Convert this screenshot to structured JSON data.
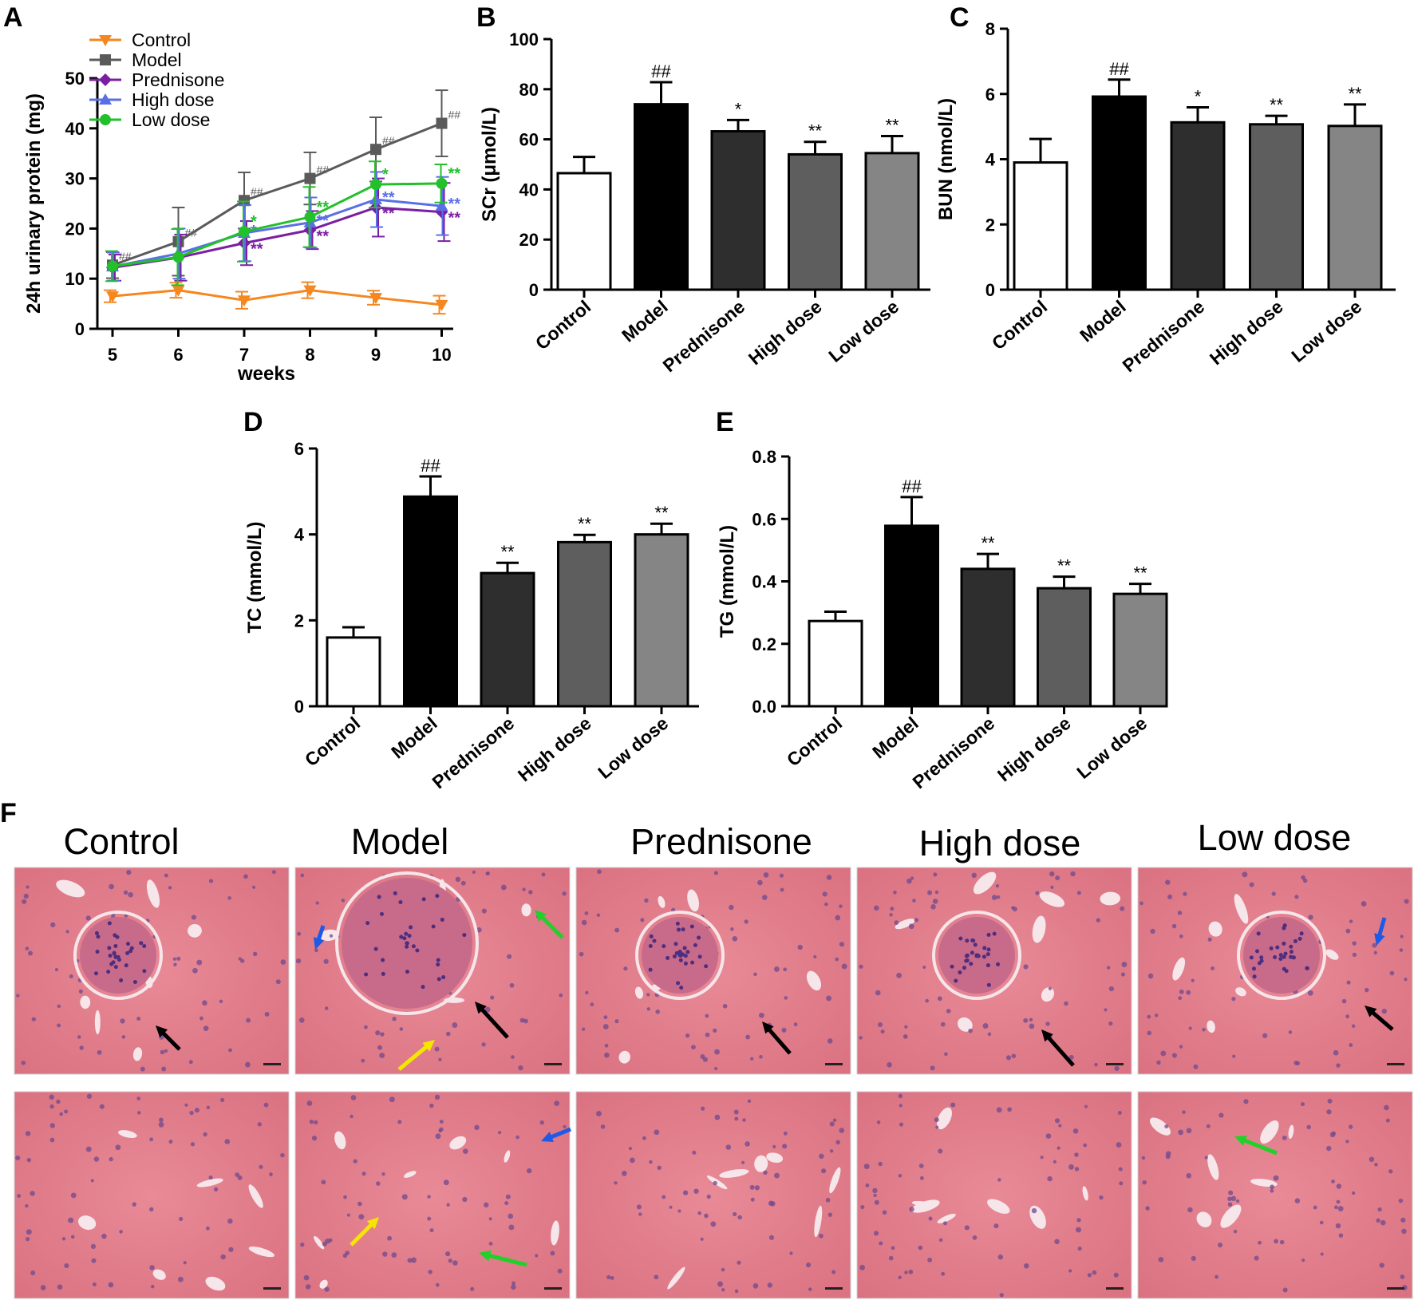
{
  "colors": {
    "control": "#F5871F",
    "model": "#5A5A5A",
    "prednisone": "#7B1FA2",
    "high_dose": "#5A6FE6",
    "low_dose": "#22C02A",
    "bar_fills": [
      "#FFFFFF",
      "#000000",
      "#2E2E2E",
      "#5E5E5E",
      "#858585"
    ]
  },
  "chart_data": [
    {
      "panel": "A",
      "type": "line",
      "xlabel": "weeks",
      "ylabel": "24h urinary protein (mg)",
      "x": [
        5,
        6,
        7,
        8,
        9,
        10
      ],
      "ylim": [
        0,
        50
      ],
      "yticks": [
        0,
        10,
        20,
        30,
        40,
        50
      ],
      "legend": "top-left",
      "grid": false,
      "series": [
        {
          "name": "Control",
          "key": "control",
          "marker": "triangle-down",
          "values": [
            6.5,
            7.7,
            5.7,
            7.7,
            6.2,
            4.8
          ],
          "errors": [
            1.2,
            1.5,
            1.7,
            1.6,
            1.4,
            1.8
          ],
          "labels": [
            "",
            "",
            "",
            "",
            "",
            ""
          ]
        },
        {
          "name": "Model",
          "key": "model",
          "marker": "square",
          "values": [
            12.7,
            17.4,
            25.6,
            30.0,
            35.8,
            41.0
          ],
          "errors": [
            2.6,
            6.8,
            5.6,
            5.2,
            6.4,
            6.6
          ],
          "labels": [
            "##",
            "##",
            "##",
            "##",
            "##",
            "##"
          ]
        },
        {
          "name": "Prednisone",
          "key": "prednisone",
          "marker": "diamond",
          "values": [
            12.2,
            14.2,
            17.1,
            19.7,
            24.2,
            23.3
          ],
          "errors": [
            2.6,
            4.6,
            4.4,
            3.8,
            5.8,
            5.8
          ],
          "labels": [
            "",
            "",
            "**",
            "**",
            "**",
            "**"
          ]
        },
        {
          "name": "High dose",
          "key": "high_dose",
          "marker": "triangle-up",
          "values": [
            12.4,
            15.0,
            19.1,
            21.2,
            25.8,
            24.5
          ],
          "errors": [
            2.8,
            5.0,
            5.6,
            5.0,
            5.5,
            5.8
          ],
          "labels": [
            "",
            "",
            "*",
            "**",
            "**",
            "**"
          ]
        },
        {
          "name": "Low dose",
          "key": "low_dose",
          "marker": "circle",
          "values": [
            12.5,
            14.3,
            19.4,
            22.3,
            28.8,
            29.0
          ],
          "errors": [
            3.0,
            5.6,
            6.0,
            6.0,
            4.6,
            3.8
          ],
          "labels": [
            "",
            "",
            "*",
            "**",
            "*",
            "**"
          ]
        }
      ]
    },
    {
      "panel": "B",
      "type": "bar",
      "categories": [
        "Control",
        "Model",
        "Prednisone",
        "High dose",
        "Low dose"
      ],
      "values": [
        46.5,
        74.0,
        63.2,
        54.0,
        54.5
      ],
      "errors": [
        6.5,
        8.8,
        4.5,
        5.0,
        6.8
      ],
      "labels": [
        "",
        "##",
        "*",
        "**",
        "**"
      ],
      "ylabel": "SCr (μmol/L)",
      "ylim": [
        0,
        100
      ],
      "yticks": [
        0,
        20,
        40,
        60,
        80,
        100
      ],
      "tick_format": "0"
    },
    {
      "panel": "C",
      "type": "bar",
      "categories": [
        "Control",
        "Model",
        "Prednisone",
        "High dose",
        "Low dose"
      ],
      "values": [
        3.9,
        5.92,
        5.13,
        5.07,
        5.02
      ],
      "errors": [
        0.72,
        0.52,
        0.46,
        0.26,
        0.66
      ],
      "labels": [
        "",
        "##",
        "*",
        "**",
        "**"
      ],
      "ylabel": "BUN (nmol/L)",
      "ylim": [
        0,
        8
      ],
      "yticks": [
        0,
        2,
        4,
        6,
        8
      ],
      "tick_format": "0"
    },
    {
      "panel": "D",
      "type": "bar",
      "categories": [
        "Control",
        "Model",
        "Prednisone",
        "High dose",
        "Low dose"
      ],
      "values": [
        1.6,
        4.88,
        3.1,
        3.82,
        4.0
      ],
      "errors": [
        0.24,
        0.47,
        0.24,
        0.17,
        0.25
      ],
      "labels": [
        "",
        "##",
        "**",
        "**",
        "**"
      ],
      "ylabel": "TC (mmol/L)",
      "ylim": [
        0,
        6
      ],
      "yticks": [
        0,
        2,
        4,
        6
      ],
      "tick_format": "0"
    },
    {
      "panel": "E",
      "type": "bar",
      "categories": [
        "Control",
        "Model",
        "Prednisone",
        "High dose",
        "Low dose"
      ],
      "values": [
        0.273,
        0.578,
        0.44,
        0.378,
        0.36
      ],
      "errors": [
        0.03,
        0.092,
        0.048,
        0.037,
        0.032
      ],
      "labels": [
        "",
        "##",
        "**",
        "**",
        "**"
      ],
      "ylabel": "TG (mmol/L)",
      "ylim": [
        0,
        0.8
      ],
      "yticks": [
        0.0,
        0.2,
        0.4,
        0.6,
        0.8
      ],
      "tick_format": "0.0"
    }
  ],
  "panel_letters": [
    "A",
    "B",
    "C",
    "D",
    "E",
    "F"
  ],
  "histology": {
    "titles": [
      "Control",
      "Model",
      "Prednisone",
      "High dose",
      "Low dose"
    ],
    "arrow_colors": {
      "black": "#000000",
      "blue": "#1E5AE6",
      "green": "#22D02A",
      "yellow": "#F5E600"
    }
  }
}
